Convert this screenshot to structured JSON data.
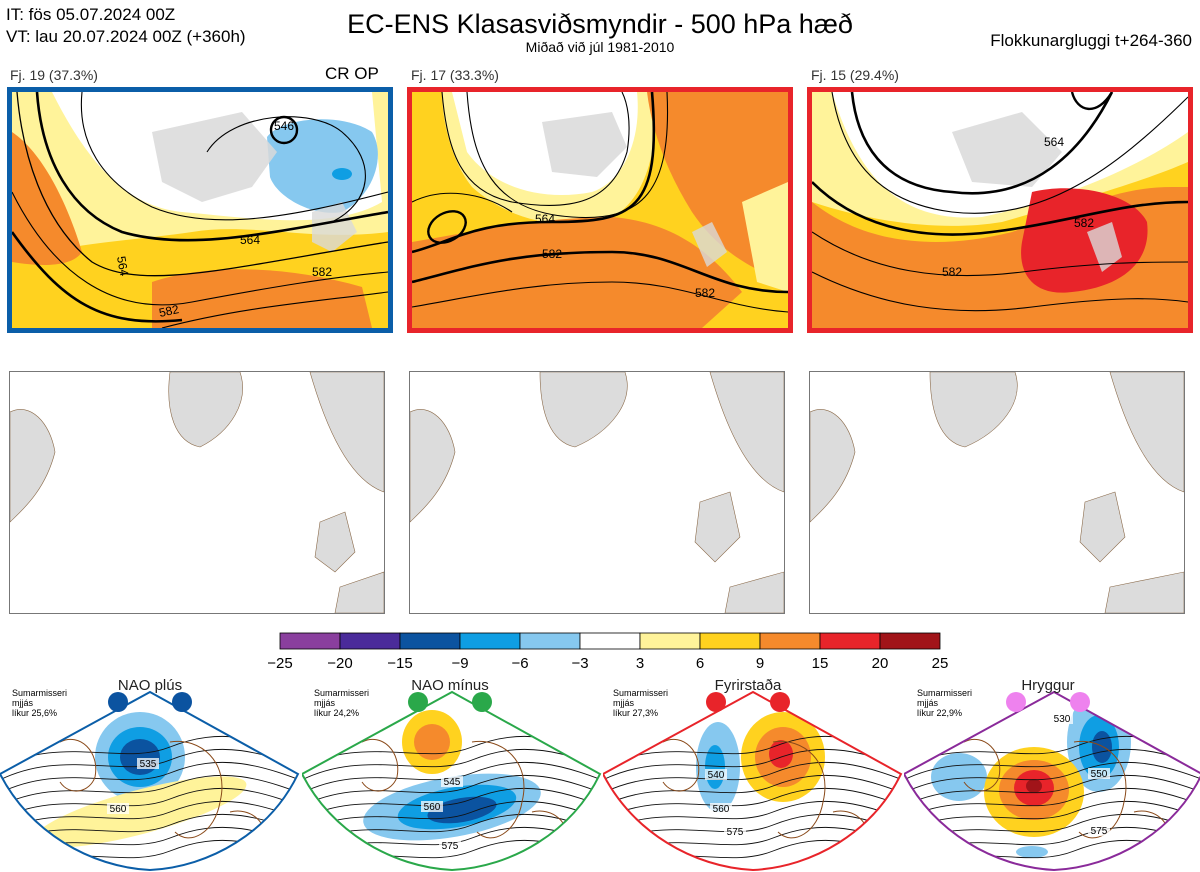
{
  "header": {
    "it_line": "IT: fös 05.07.2024 00Z",
    "vt_line": "VT: lau 20.07.2024 00Z  (+360h)",
    "title": "EC-ENS Klasasviðsmyndir - 500 hPa hæð",
    "subtitle": "Miðað við júl 1981-2010",
    "window": "Flokkunargluggi t+264-360"
  },
  "clusters": [
    {
      "label": "Fj. 19 (37.3%)",
      "tag": "CR OP",
      "border_color": "#0b5ea8",
      "contours": [
        "546",
        "564",
        "564",
        "582",
        "582"
      ]
    },
    {
      "label": "Fj. 17 (33.3%)",
      "tag": "",
      "border_color": "#e8242a",
      "contours": [
        "564",
        "582",
        "582"
      ]
    },
    {
      "label": "Fj. 15 (29.4%)",
      "tag": "",
      "border_color": "#e8242a",
      "contours": [
        "564",
        "582",
        "582"
      ]
    }
  ],
  "colorbar": {
    "ticks": [
      "−25",
      "−20",
      "−15",
      "−9",
      "−6",
      "−3",
      "3",
      "6",
      "9",
      "15",
      "20",
      "25"
    ],
    "colors": [
      "#8a3f9e",
      "#4a2b9a",
      "#0b53a0",
      "#0f9ee3",
      "#86c8ef",
      "#ffffff",
      "#fff39a",
      "#ffd21f",
      "#f58a2c",
      "#e8242a",
      "#a11419"
    ]
  },
  "regimes": [
    {
      "name": "NAO plús",
      "season": "Sumarmisseri",
      "smooth": "mjjás",
      "prob": "líkur 25,6%",
      "color": "#0b5ea8",
      "dot_color": "#0b53a0",
      "contours": [
        "535",
        "560"
      ]
    },
    {
      "name": "NAO mínus",
      "season": "Sumarmisseri",
      "smooth": "mjjás",
      "prob": "líkur 24,2%",
      "color": "#2aa84a",
      "dot_color": "#2aa84a",
      "contours": [
        "545",
        "560",
        "575"
      ]
    },
    {
      "name": "Fyrirstaða",
      "season": "Sumarmisseri",
      "smooth": "mjjás",
      "prob": "líkur 27,3%",
      "color": "#e8242a",
      "dot_color": "#e8242a",
      "contours": [
        "540",
        "560",
        "575"
      ]
    },
    {
      "name": "Hryggur",
      "season": "Sumarmisseri",
      "smooth": "mjjás",
      "prob": "líkur 22,9%",
      "color": "#8a2a9a",
      "dot_color": "#ee82ee",
      "contours": [
        "530",
        "550",
        "575"
      ]
    }
  ]
}
